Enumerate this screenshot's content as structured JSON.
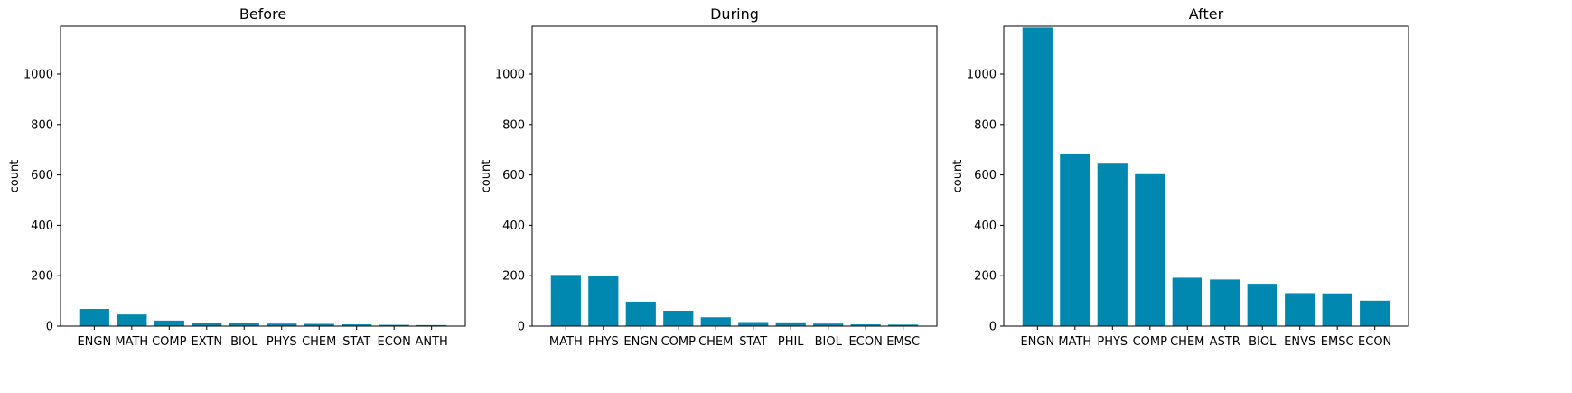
{
  "bar_color": "#0088b0",
  "chart_data": [
    {
      "type": "bar",
      "title": "Before",
      "xlabel": "",
      "ylabel": "count",
      "ylim": [
        0,
        1190
      ],
      "yticks": [
        0,
        200,
        400,
        600,
        800,
        1000
      ],
      "categories": [
        "ENGN",
        "MATH",
        "COMP",
        "EXTN",
        "BIOL",
        "PHYS",
        "CHEM",
        "STAT",
        "ECON",
        "ANTH"
      ],
      "values": [
        68,
        46,
        22,
        13,
        11,
        10,
        9,
        7,
        5,
        4
      ]
    },
    {
      "type": "bar",
      "title": "During",
      "xlabel": "",
      "ylabel": "count",
      "ylim": [
        0,
        1190
      ],
      "yticks": [
        0,
        200,
        400,
        600,
        800,
        1000
      ],
      "categories": [
        "MATH",
        "PHYS",
        "ENGN",
        "COMP",
        "CHEM",
        "STAT",
        "PHIL",
        "BIOL",
        "ECON",
        "EMSC"
      ],
      "values": [
        203,
        198,
        97,
        61,
        35,
        16,
        15,
        10,
        7,
        6
      ]
    },
    {
      "type": "bar",
      "title": "After",
      "xlabel": "",
      "ylabel": "count",
      "ylim": [
        0,
        1190
      ],
      "yticks": [
        0,
        200,
        400,
        600,
        800,
        1000
      ],
      "categories": [
        "ENGN",
        "MATH",
        "PHYS",
        "COMP",
        "CHEM",
        "ASTR",
        "BIOL",
        "ENVS",
        "EMSC",
        "ECON"
      ],
      "values": [
        1185,
        683,
        648,
        603,
        192,
        185,
        168,
        131,
        130,
        101
      ]
    }
  ]
}
